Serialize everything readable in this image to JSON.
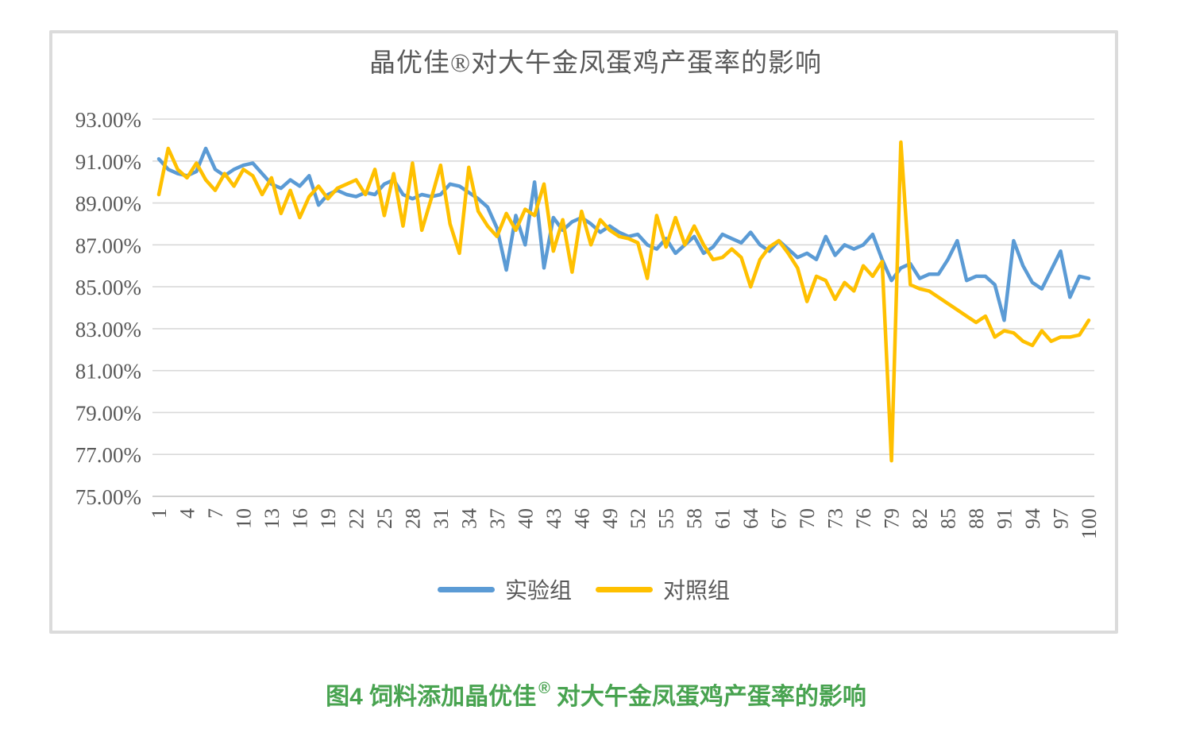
{
  "chart": {
    "title": "晶优佳®对大午金凤蛋鸡产蛋率的影响",
    "colors": {
      "experimental": "#5B9BD5",
      "control": "#FFC000",
      "gridline": "#D9D9D9",
      "axis_line": "#BFBFBF",
      "text": "#595959",
      "border": "#DBDBDB"
    },
    "y_axis": {
      "tick_labels": [
        "93.00%",
        "91.00%",
        "89.00%",
        "87.00%",
        "85.00%",
        "83.00%",
        "81.00%",
        "79.00%",
        "77.00%",
        "75.00%"
      ],
      "tick_values": [
        93,
        91,
        89,
        87,
        85,
        83,
        81,
        79,
        77,
        75
      ]
    },
    "x_axis": {
      "tick_labels": [
        "1",
        "4",
        "7",
        "10",
        "13",
        "16",
        "19",
        "22",
        "25",
        "28",
        "31",
        "34",
        "37",
        "40",
        "43",
        "46",
        "49",
        "52",
        "55",
        "58",
        "61",
        "64",
        "67",
        "70",
        "73",
        "76",
        "79",
        "82",
        "85",
        "88",
        "91",
        "94",
        "97",
        "100"
      ],
      "tick_step": 3
    },
    "legend": [
      {
        "label": "实验组",
        "color": "#5B9BD5"
      },
      {
        "label": "对照组",
        "color": "#FFC000"
      }
    ]
  },
  "chart_data": {
    "type": "line",
    "title": "晶优佳®对大午金凤蛋鸡产蛋率的影响",
    "xlabel": "",
    "ylabel": "",
    "ylim": [
      75,
      93
    ],
    "y_tick_interval": 2,
    "y_unit": "percent",
    "grid": true,
    "legend_position": "bottom",
    "x": [
      1,
      2,
      3,
      4,
      5,
      6,
      7,
      8,
      9,
      10,
      11,
      12,
      13,
      14,
      15,
      16,
      17,
      18,
      19,
      20,
      21,
      22,
      23,
      24,
      25,
      26,
      27,
      28,
      29,
      30,
      31,
      32,
      33,
      34,
      35,
      36,
      37,
      38,
      39,
      40,
      41,
      42,
      43,
      44,
      45,
      46,
      47,
      48,
      49,
      50,
      51,
      52,
      53,
      54,
      55,
      56,
      57,
      58,
      59,
      60,
      61,
      62,
      63,
      64,
      65,
      66,
      67,
      68,
      69,
      70,
      71,
      72,
      73,
      74,
      75,
      76,
      77,
      78,
      79,
      80,
      81,
      82,
      83,
      84,
      85,
      86,
      87,
      88,
      89,
      90,
      91,
      92,
      93,
      94,
      95,
      96,
      97,
      98,
      99,
      100
    ],
    "series": [
      {
        "name": "实验组",
        "color": "#5B9BD5",
        "values": [
          91.1,
          90.6,
          90.4,
          90.3,
          90.5,
          91.6,
          90.6,
          90.3,
          90.6,
          90.8,
          90.9,
          90.4,
          89.9,
          89.7,
          90.1,
          89.8,
          90.3,
          88.9,
          89.4,
          89.6,
          89.4,
          89.3,
          89.5,
          89.4,
          89.9,
          90.1,
          89.4,
          89.2,
          89.4,
          89.3,
          89.4,
          89.9,
          89.8,
          89.5,
          89.2,
          88.8,
          87.8,
          85.8,
          88.4,
          87.0,
          90.0,
          85.9,
          88.3,
          87.7,
          88.1,
          88.3,
          88.0,
          87.6,
          87.9,
          87.6,
          87.4,
          87.5,
          87.0,
          86.8,
          87.3,
          86.6,
          87.0,
          87.4,
          86.6,
          86.9,
          87.5,
          87.3,
          87.1,
          87.6,
          87.0,
          86.7,
          87.2,
          86.8,
          86.4,
          86.6,
          86.3,
          87.4,
          86.5,
          87.0,
          86.8,
          87.0,
          87.5,
          86.3,
          85.3,
          85.9,
          86.1,
          85.4,
          85.6,
          85.6,
          86.3,
          87.2,
          85.3,
          85.5,
          85.5,
          85.1,
          83.4,
          87.2,
          86.0,
          85.2,
          84.9,
          85.8,
          86.7,
          84.5,
          85.5,
          85.4
        ]
      },
      {
        "name": "对照组",
        "color": "#FFC000",
        "values": [
          89.4,
          91.6,
          90.6,
          90.2,
          90.9,
          90.1,
          89.6,
          90.4,
          89.8,
          90.6,
          90.3,
          89.4,
          90.2,
          88.5,
          89.6,
          88.3,
          89.3,
          89.8,
          89.2,
          89.7,
          89.9,
          90.1,
          89.4,
          90.6,
          88.4,
          90.4,
          87.9,
          90.9,
          87.7,
          89.2,
          90.8,
          88.0,
          86.6,
          90.7,
          88.6,
          87.9,
          87.4,
          88.5,
          87.7,
          88.7,
          88.4,
          89.9,
          86.7,
          88.2,
          85.7,
          88.6,
          87.0,
          88.2,
          87.7,
          87.4,
          87.3,
          87.1,
          85.4,
          88.4,
          86.9,
          88.3,
          87.0,
          87.9,
          87.0,
          86.3,
          86.4,
          86.8,
          86.4,
          85.0,
          86.3,
          86.9,
          87.2,
          86.6,
          85.9,
          84.3,
          85.5,
          85.3,
          84.4,
          85.2,
          84.8,
          86.0,
          85.5,
          86.2,
          76.7,
          91.9,
          85.1,
          84.9,
          84.8,
          84.5,
          84.2,
          83.9,
          83.6,
          83.3,
          83.6,
          82.6,
          82.9,
          82.8,
          82.4,
          82.2,
          82.9,
          82.4,
          82.6,
          82.6,
          82.7,
          83.4
        ]
      }
    ]
  },
  "caption": {
    "prefix": "图4 饲料添加晶优佳",
    "sup": "®",
    "suffix": "对大午金凤蛋鸡产蛋率的影响",
    "color": "#48A350"
  }
}
